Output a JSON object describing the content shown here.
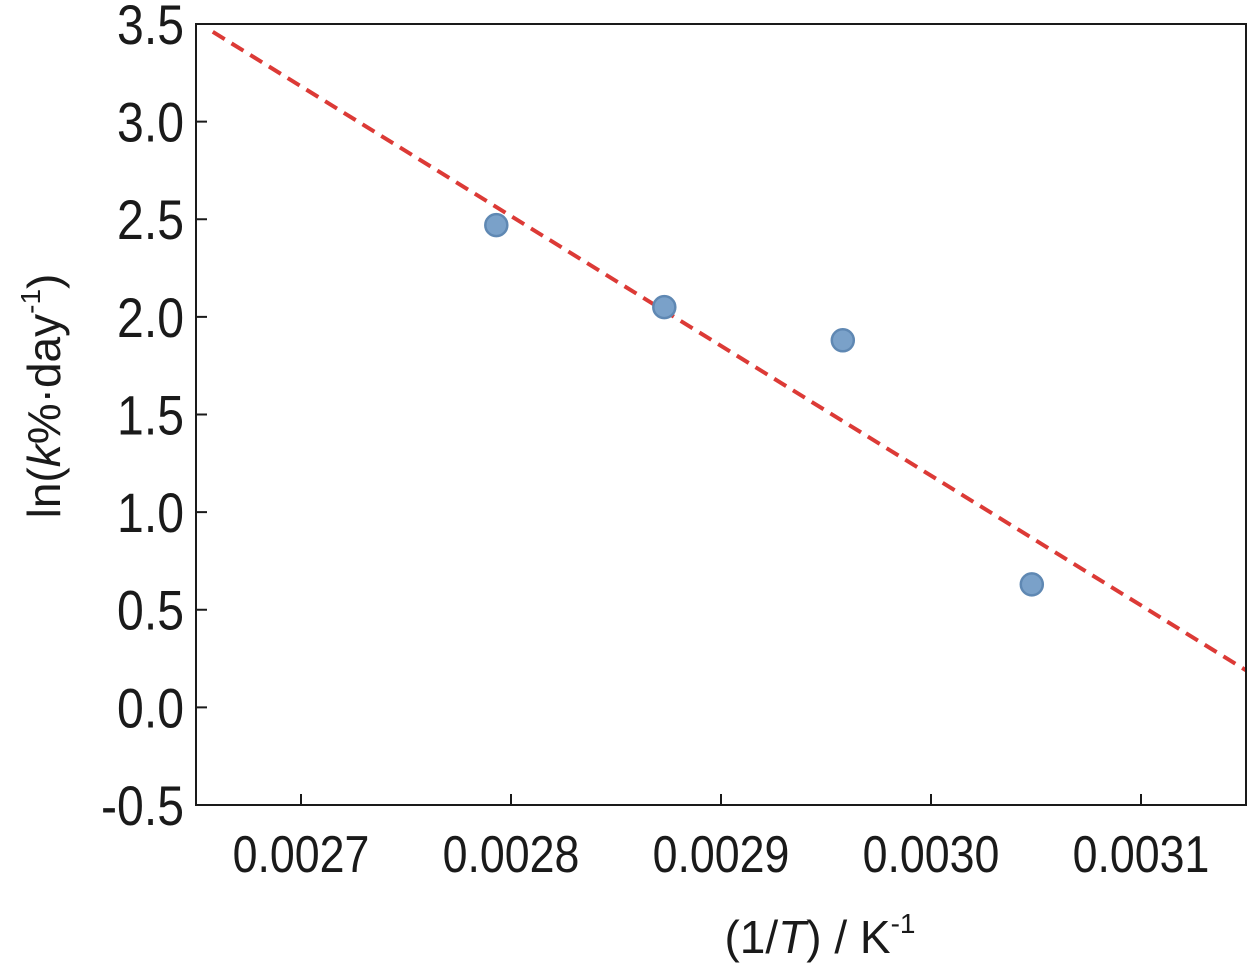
{
  "chart_data": {
    "type": "scatter",
    "title": "",
    "xlabel": {
      "open": "(1/",
      "var": "T",
      "rest": ") / K",
      "sup": "-1"
    },
    "ylabel": {
      "open": "ln(",
      "var": "k",
      "rest": "%·day",
      "sup": "-1",
      "close": ")"
    },
    "xlim": [
      0.00265,
      0.00315
    ],
    "ylim": [
      -0.5,
      3.5
    ],
    "xticks": [
      0.0027,
      0.0028,
      0.0029,
      0.003,
      0.0031
    ],
    "xtick_labels": [
      "0.0027",
      "0.0028",
      "0.0029",
      "0.0030",
      "0.0031"
    ],
    "yticks": [
      -0.5,
      0.0,
      0.5,
      1.0,
      1.5,
      2.0,
      2.5,
      3.0,
      3.5
    ],
    "ytick_labels": [
      "-0.5",
      "0.0",
      "0.5",
      "1.0",
      "1.5",
      "2.0",
      "2.5",
      "3.0",
      "3.5"
    ],
    "grid": false,
    "series": [
      {
        "kind": "points",
        "points": [
          {
            "x": 0.002793,
            "y": 2.47
          },
          {
            "x": 0.002873,
            "y": 2.05
          },
          {
            "x": 0.002958,
            "y": 1.88
          },
          {
            "x": 0.003048,
            "y": 0.63
          }
        ],
        "color": "#7aa1c9",
        "edge_color": "#5f88b3"
      },
      {
        "kind": "fit-line",
        "style": "dashed",
        "points": [
          {
            "x": 0.002658,
            "y": 3.46
          },
          {
            "x": 0.00315,
            "y": 0.19
          }
        ],
        "color": "#dc3a36"
      }
    ]
  }
}
